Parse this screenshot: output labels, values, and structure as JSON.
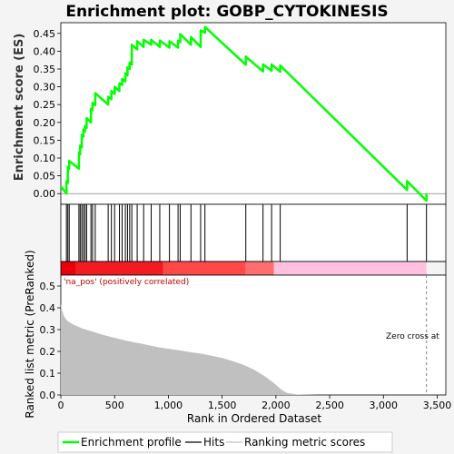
{
  "chart_data": {
    "type": "line",
    "title": "Enrichment plot: GOBP_CYTOKINESIS",
    "xlabel": "Rank in Ordered Dataset",
    "es_ylabel": "Enrichment score (ES)",
    "metric_ylabel": "Ranked list metric (PreRanked)",
    "xlim": [
      0,
      3580
    ],
    "es_ylim": [
      -0.03,
      0.48
    ],
    "metric_ylim": [
      0.0,
      0.55
    ],
    "x_ticks": [
      0,
      500,
      1000,
      1500,
      2000,
      2500,
      3000,
      3500
    ],
    "x_tick_labels": [
      "0",
      "500",
      "1,000",
      "1,500",
      "2,000",
      "2,500",
      "3,000",
      "3,500"
    ],
    "es_ticks": [
      0.0,
      0.05,
      0.1,
      0.15,
      0.2,
      0.25,
      0.3,
      0.35,
      0.4,
      0.45
    ],
    "es_tick_labels": [
      "0.00",
      "0.05",
      "0.10",
      "0.15",
      "0.20",
      "0.25",
      "0.30",
      "0.35",
      "0.40",
      "0.45"
    ],
    "metric_ticks": [
      0.0,
      0.1,
      0.2,
      0.3,
      0.4,
      0.5
    ],
    "metric_tick_labels": [
      "0.0",
      "0.1",
      "0.2",
      "0.3",
      "0.4",
      "0.5"
    ],
    "annotation_pos": "'na_pos' (positively correlated)",
    "annotation_zero": "Zero cross at",
    "zero_cross_rank": 3400,
    "dataset_size": 3400,
    "hit_ranks": [
      52,
      65,
      78,
      168,
      180,
      195,
      210,
      225,
      240,
      280,
      295,
      320,
      440,
      470,
      500,
      545,
      570,
      600,
      620,
      640,
      660,
      710,
      770,
      840,
      920,
      1010,
      1090,
      1110,
      1210,
      1300,
      1340,
      1720,
      1880,
      1960,
      2040,
      3220,
      3400
    ],
    "es_profile": [
      [
        0,
        0.02
      ],
      [
        52,
        0.0
      ],
      [
        52,
        0.035
      ],
      [
        65,
        0.03
      ],
      [
        65,
        0.075
      ],
      [
        78,
        0.07
      ],
      [
        78,
        0.092
      ],
      [
        168,
        0.07
      ],
      [
        168,
        0.115
      ],
      [
        180,
        0.11
      ],
      [
        180,
        0.135
      ],
      [
        195,
        0.13
      ],
      [
        195,
        0.165
      ],
      [
        210,
        0.16
      ],
      [
        210,
        0.18
      ],
      [
        225,
        0.175
      ],
      [
        225,
        0.19
      ],
      [
        240,
        0.185
      ],
      [
        240,
        0.212
      ],
      [
        280,
        0.2
      ],
      [
        280,
        0.238
      ],
      [
        295,
        0.235
      ],
      [
        295,
        0.255
      ],
      [
        320,
        0.248
      ],
      [
        320,
        0.282
      ],
      [
        440,
        0.25
      ],
      [
        440,
        0.272
      ],
      [
        470,
        0.265
      ],
      [
        470,
        0.288
      ],
      [
        500,
        0.28
      ],
      [
        500,
        0.3
      ],
      [
        545,
        0.288
      ],
      [
        545,
        0.31
      ],
      [
        570,
        0.305
      ],
      [
        570,
        0.322
      ],
      [
        600,
        0.315
      ],
      [
        600,
        0.338
      ],
      [
        620,
        0.332
      ],
      [
        620,
        0.355
      ],
      [
        640,
        0.35
      ],
      [
        640,
        0.368
      ],
      [
        660,
        0.362
      ],
      [
        660,
        0.418
      ],
      [
        710,
        0.405
      ],
      [
        710,
        0.428
      ],
      [
        770,
        0.412
      ],
      [
        770,
        0.432
      ],
      [
        840,
        0.418
      ],
      [
        840,
        0.432
      ],
      [
        920,
        0.412
      ],
      [
        920,
        0.43
      ],
      [
        1010,
        0.41
      ],
      [
        1010,
        0.428
      ],
      [
        1090,
        0.41
      ],
      [
        1090,
        0.43
      ],
      [
        1110,
        0.425
      ],
      [
        1110,
        0.448
      ],
      [
        1210,
        0.418
      ],
      [
        1210,
        0.44
      ],
      [
        1300,
        0.412
      ],
      [
        1300,
        0.458
      ],
      [
        1340,
        0.452
      ],
      [
        1340,
        0.468
      ],
      [
        1720,
        0.362
      ],
      [
        1720,
        0.385
      ],
      [
        1880,
        0.343
      ],
      [
        1880,
        0.363
      ],
      [
        1960,
        0.345
      ],
      [
        1960,
        0.363
      ],
      [
        2040,
        0.342
      ],
      [
        2040,
        0.36
      ],
      [
        3220,
        0.01
      ],
      [
        3220,
        0.035
      ],
      [
        3400,
        -0.02
      ],
      [
        3400,
        0.0
      ]
    ],
    "metric_profile": [
      [
        0,
        0.42
      ],
      [
        10,
        0.39
      ],
      [
        30,
        0.36
      ],
      [
        60,
        0.34
      ],
      [
        120,
        0.322
      ],
      [
        200,
        0.305
      ],
      [
        300,
        0.29
      ],
      [
        400,
        0.275
      ],
      [
        500,
        0.262
      ],
      [
        600,
        0.25
      ],
      [
        700,
        0.24
      ],
      [
        800,
        0.23
      ],
      [
        900,
        0.22
      ],
      [
        1000,
        0.212
      ],
      [
        1100,
        0.205
      ],
      [
        1200,
        0.197
      ],
      [
        1300,
        0.19
      ],
      [
        1400,
        0.18
      ],
      [
        1500,
        0.17
      ],
      [
        1600,
        0.155
      ],
      [
        1700,
        0.138
      ],
      [
        1800,
        0.115
      ],
      [
        1900,
        0.085
      ],
      [
        1980,
        0.055
      ],
      [
        2050,
        0.025
      ],
      [
        2100,
        0.01
      ],
      [
        2200,
        0.002
      ],
      [
        2400,
        0.0
      ],
      [
        3400,
        0.0
      ]
    ],
    "colors": {
      "es_line": "#00ff00",
      "hit_line": "#000000",
      "metric_fill": "#c0c0c0",
      "band_red": "#e8000b",
      "band_light": "#ff6e6e",
      "band_pink": "#ffc0e0",
      "zero_line": "#808080"
    },
    "legend": {
      "enrichment": "Enrichment profile",
      "hits": "Hits",
      "ranking": "Ranking metric scores"
    }
  }
}
